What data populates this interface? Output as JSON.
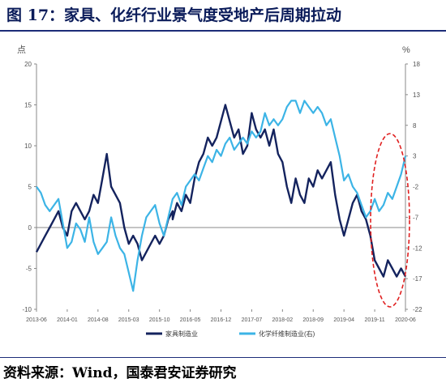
{
  "title": "图 17：家具、化纤行业景气度受地产后周期拉动",
  "source": "资料来源：Wind，国泰君安证券研究",
  "chart_data": {
    "type": "line",
    "title": "图 17：家具、化纤行业景气度受地产后周期拉动",
    "y_left_unit": "点",
    "y_right_unit": "%",
    "y_left_range": [
      -10,
      20
    ],
    "y_right_range": [
      -22,
      18
    ],
    "y_left_ticks": [
      "20",
      "15",
      "10",
      "5",
      "0",
      "-5",
      "-10"
    ],
    "y_right_ticks": [
      "18",
      "13",
      "8",
      "3",
      "-2",
      "-7",
      "-12",
      "-17",
      "-22"
    ],
    "x_ticks": [
      "2013-06",
      "2014-01",
      "2014-08",
      "2015-03",
      "2015-10",
      "2016-05",
      "2016-12",
      "2017-07",
      "2018-02",
      "2018-09",
      "2019-04",
      "2019-11",
      "2020-06"
    ],
    "x_start": "2013-06",
    "x_end": "2020-06",
    "grid": false,
    "legend_position": "bottom",
    "colors": {
      "furniture": "#14235e",
      "fiber": "#3cb4e6",
      "highlight": "#e02020"
    },
    "series": [
      {
        "name": "家具制造业",
        "axis": "left",
        "values": [
          [
            "2013-06",
            -3
          ],
          [
            "2013-07",
            -2
          ],
          [
            "2013-08",
            -1
          ],
          [
            "2013-09",
            0
          ],
          [
            "2013-10",
            1
          ],
          [
            "2013-11",
            2
          ],
          [
            "2013-12",
            0
          ],
          [
            "2014-01",
            -1
          ],
          [
            "2014-02",
            2
          ],
          [
            "2014-03",
            3
          ],
          [
            "2014-04",
            2
          ],
          [
            "2014-05",
            1
          ],
          [
            "2014-06",
            2
          ],
          [
            "2014-07",
            4
          ],
          [
            "2014-08",
            3
          ],
          [
            "2014-09",
            6
          ],
          [
            "2014-10",
            9
          ],
          [
            "2014-11",
            5
          ],
          [
            "2014-12",
            4
          ],
          [
            "2015-01",
            3
          ],
          [
            "2015-02",
            0
          ],
          [
            "2015-03",
            -2
          ],
          [
            "2015-04",
            -1
          ],
          [
            "2015-05",
            -2
          ],
          [
            "2015-06",
            -4
          ],
          [
            "2015-07",
            -3
          ],
          [
            "2015-08",
            -2
          ],
          [
            "2015-09",
            -1
          ],
          [
            "2015-10",
            -2
          ],
          [
            "2015-11",
            -1
          ],
          [
            "2015-12",
            1
          ],
          [
            "2015-13",
            2
          ],
          [
            "2016-01",
            1
          ],
          [
            "2016-02",
            3
          ],
          [
            "2016-03",
            2
          ],
          [
            "2016-04",
            4
          ],
          [
            "2016-05",
            3
          ],
          [
            "2016-06",
            6
          ],
          [
            "2016-07",
            8
          ],
          [
            "2016-08",
            9
          ],
          [
            "2016-09",
            11
          ],
          [
            "2016-10",
            10
          ],
          [
            "2016-11",
            11
          ],
          [
            "2016-12",
            13
          ],
          [
            "2017-01",
            15
          ],
          [
            "2017-02",
            13
          ],
          [
            "2017-03",
            11
          ],
          [
            "2017-04",
            12
          ],
          [
            "2017-05",
            9
          ],
          [
            "2017-06",
            10
          ],
          [
            "2017-07",
            14
          ],
          [
            "2017-08",
            12
          ],
          [
            "2017-09",
            11
          ],
          [
            "2017-10",
            12
          ],
          [
            "2017-11",
            10
          ],
          [
            "2017-12",
            12
          ],
          [
            "2018-01",
            9
          ],
          [
            "2018-02",
            8
          ],
          [
            "2018-03",
            5
          ],
          [
            "2018-04",
            3
          ],
          [
            "2018-05",
            6
          ],
          [
            "2018-06",
            4
          ],
          [
            "2018-07",
            3
          ],
          [
            "2018-08",
            6
          ],
          [
            "2018-09",
            5
          ],
          [
            "2018-10",
            7
          ],
          [
            "2018-11",
            6
          ],
          [
            "2018-12",
            7
          ],
          [
            "2019-01",
            8
          ],
          [
            "2019-02",
            4
          ],
          [
            "2019-03",
            1
          ],
          [
            "2019-04",
            -1
          ],
          [
            "2019-05",
            1
          ],
          [
            "2019-06",
            3
          ],
          [
            "2019-07",
            4
          ],
          [
            "2019-08",
            2
          ],
          [
            "2019-09",
            1
          ],
          [
            "2019-10",
            -1
          ],
          [
            "2019-11",
            -4
          ],
          [
            "2019-12",
            -5
          ],
          [
            "2020-01",
            -6
          ],
          [
            "2020-02",
            -4
          ],
          [
            "2020-03",
            -5
          ],
          [
            "2020-04",
            -6
          ],
          [
            "2020-05",
            -5
          ],
          [
            "2020-06",
            -6
          ]
        ]
      },
      {
        "name": "化学纤维制造业(右)",
        "axis": "right",
        "values": [
          [
            "2013-06",
            -2
          ],
          [
            "2013-07",
            -3
          ],
          [
            "2013-08",
            -5
          ],
          [
            "2013-09",
            -6
          ],
          [
            "2013-10",
            -5
          ],
          [
            "2013-11",
            -4
          ],
          [
            "2013-12",
            -8
          ],
          [
            "2014-01",
            -12
          ],
          [
            "2014-02",
            -11
          ],
          [
            "2014-03",
            -8
          ],
          [
            "2014-04",
            -9
          ],
          [
            "2014-05",
            -11
          ],
          [
            "2014-06",
            -7
          ],
          [
            "2014-07",
            -11
          ],
          [
            "2014-08",
            -13
          ],
          [
            "2014-09",
            -12
          ],
          [
            "2014-10",
            -11
          ],
          [
            "2014-11",
            -7
          ],
          [
            "2014-12",
            -10
          ],
          [
            "2015-01",
            -12
          ],
          [
            "2015-02",
            -13
          ],
          [
            "2015-03",
            -16
          ],
          [
            "2015-04",
            -19
          ],
          [
            "2015-05",
            -14
          ],
          [
            "2015-06",
            -10
          ],
          [
            "2015-07",
            -7
          ],
          [
            "2015-08",
            -6
          ],
          [
            "2015-09",
            -5
          ],
          [
            "2015-10",
            -8
          ],
          [
            "2015-11",
            -10
          ],
          [
            "2015-12",
            -7
          ],
          [
            "2016-01",
            -4
          ],
          [
            "2016-02",
            -3
          ],
          [
            "2016-03",
            -5
          ],
          [
            "2016-04",
            -2
          ],
          [
            "2016-05",
            -1
          ],
          [
            "2016-06",
            0
          ],
          [
            "2016-07",
            -1
          ],
          [
            "2016-08",
            1
          ],
          [
            "2016-09",
            3
          ],
          [
            "2016-10",
            2
          ],
          [
            "2016-11",
            4
          ],
          [
            "2016-12",
            3
          ],
          [
            "2017-01",
            5
          ],
          [
            "2017-02",
            6
          ],
          [
            "2017-03",
            4
          ],
          [
            "2017-04",
            5
          ],
          [
            "2017-05",
            6
          ],
          [
            "2017-06",
            5
          ],
          [
            "2017-07",
            7
          ],
          [
            "2017-08",
            6
          ],
          [
            "2017-09",
            7
          ],
          [
            "2017-10",
            10
          ],
          [
            "2017-11",
            8
          ],
          [
            "2017-12",
            9
          ],
          [
            "2018-01",
            8
          ],
          [
            "2018-02",
            9
          ],
          [
            "2018-03",
            11
          ],
          [
            "2018-04",
            12
          ],
          [
            "2018-05",
            12
          ],
          [
            "2018-06",
            10
          ],
          [
            "2018-07",
            12
          ],
          [
            "2018-08",
            11
          ],
          [
            "2018-09",
            10
          ],
          [
            "2018-10",
            11
          ],
          [
            "2018-11",
            10
          ],
          [
            "2018-12",
            8
          ],
          [
            "2019-01",
            9
          ],
          [
            "2019-02",
            6
          ],
          [
            "2019-03",
            3
          ],
          [
            "2019-04",
            -1
          ],
          [
            "2019-05",
            0
          ],
          [
            "2019-06",
            -2
          ],
          [
            "2019-07",
            -3
          ],
          [
            "2019-08",
            -5
          ],
          [
            "2019-09",
            -7
          ],
          [
            "2019-10",
            -6
          ],
          [
            "2019-11",
            -4
          ],
          [
            "2019-12",
            -6
          ],
          [
            "2020-01",
            -5
          ],
          [
            "2020-02",
            -3
          ],
          [
            "2020-03",
            -4
          ],
          [
            "2020-04",
            -2
          ],
          [
            "2020-05",
            0
          ],
          [
            "2020-06",
            3
          ]
        ]
      }
    ]
  }
}
